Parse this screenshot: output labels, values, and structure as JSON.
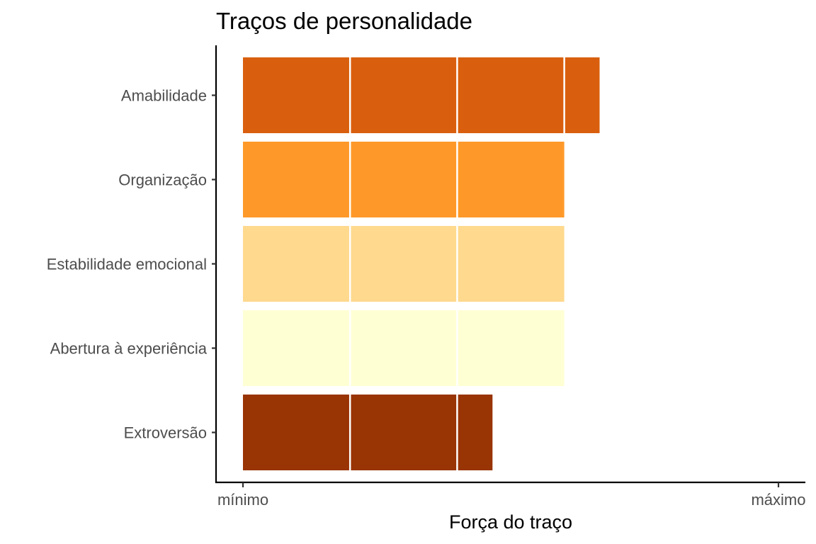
{
  "chart_data": {
    "type": "bar",
    "orientation": "horizontal",
    "title": "Traços de personalidade",
    "xlabel": "Força do traço",
    "ylabel": "",
    "categories": [
      "Amabilidade",
      "Organização",
      "Estabilidade emocional",
      "Abertura à experiência",
      "Extroversão"
    ],
    "values": [
      3.33,
      3.0,
      3.0,
      3.0,
      2.33
    ],
    "colors": [
      "#d95f0e",
      "#fe9929",
      "#fed98e",
      "#ffffd4",
      "#993404"
    ],
    "segment_step": 1,
    "xlim": [
      0,
      5
    ],
    "x_ticks": [
      {
        "value": 0,
        "label": "mínimo"
      },
      {
        "value": 5,
        "label": "máximo"
      }
    ],
    "grid": false,
    "legend": "none"
  }
}
